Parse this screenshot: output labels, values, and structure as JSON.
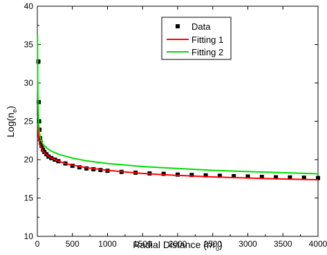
{
  "chart_data": {
    "type": "line",
    "xlabel": "Radial Distance (r/r",
    "xlabel_sub": "0",
    "xlabel_end": ")",
    "ylabel": "Log(n",
    "ylabel_sub": "e",
    "ylabel_end": ")",
    "xlim": [
      0,
      4000
    ],
    "ylim": [
      10,
      40
    ],
    "x_ticks": [
      0,
      500,
      1000,
      1500,
      2000,
      2500,
      3000,
      3500,
      4000
    ],
    "y_ticks": [
      10,
      15,
      20,
      25,
      30,
      35,
      40
    ],
    "legend_position": "top-right",
    "grid": false,
    "series": [
      {
        "name": "Data",
        "style": "square-markers",
        "color": "#000000",
        "x": [
          15,
          20,
          25,
          30,
          40,
          50,
          60,
          80,
          100,
          130,
          160,
          200,
          250,
          300,
          400,
          500,
          600,
          700,
          800,
          900,
          1000,
          1200,
          1400,
          1600,
          1800,
          2000,
          2200,
          2400,
          2600,
          2800,
          3000,
          3200,
          3400,
          3600,
          3800,
          4000
        ],
        "y": [
          32.8,
          27.5,
          25.0,
          23.9,
          22.8,
          22.2,
          21.8,
          21.3,
          21.0,
          20.7,
          20.4,
          20.2,
          20.0,
          19.8,
          19.5,
          19.2,
          19.0,
          18.85,
          18.75,
          18.65,
          18.55,
          18.4,
          18.3,
          18.2,
          18.15,
          18.05,
          18.0,
          17.95,
          17.9,
          17.85,
          17.8,
          17.75,
          17.7,
          17.68,
          17.65,
          17.6
        ]
      },
      {
        "name": "Fitting 1",
        "style": "line",
        "color": "#ff0000",
        "x": [
          5,
          10,
          20,
          30,
          50,
          80,
          100,
          150,
          200,
          300,
          400,
          500,
          700,
          1000,
          1500,
          2000,
          2500,
          3000,
          3500,
          4000
        ],
        "y": [
          24.5,
          23.6,
          22.7,
          22.2,
          21.6,
          21.1,
          20.9,
          20.5,
          20.2,
          19.8,
          19.5,
          19.3,
          18.95,
          18.6,
          18.2,
          17.95,
          17.75,
          17.6,
          17.48,
          17.38
        ]
      },
      {
        "name": "Fitting 2",
        "style": "line",
        "color": "#00dd00",
        "x": [
          2,
          5,
          10,
          20,
          30,
          50,
          80,
          100,
          150,
          200,
          300,
          500,
          700,
          1000,
          1500,
          2000,
          2500,
          3000,
          3500,
          4000
        ],
        "y": [
          36.3,
          30.5,
          27.2,
          24.6,
          23.5,
          22.6,
          22.0,
          21.8,
          21.4,
          21.1,
          20.7,
          20.2,
          19.85,
          19.5,
          19.1,
          18.85,
          18.6,
          18.45,
          18.3,
          18.15
        ]
      }
    ]
  }
}
